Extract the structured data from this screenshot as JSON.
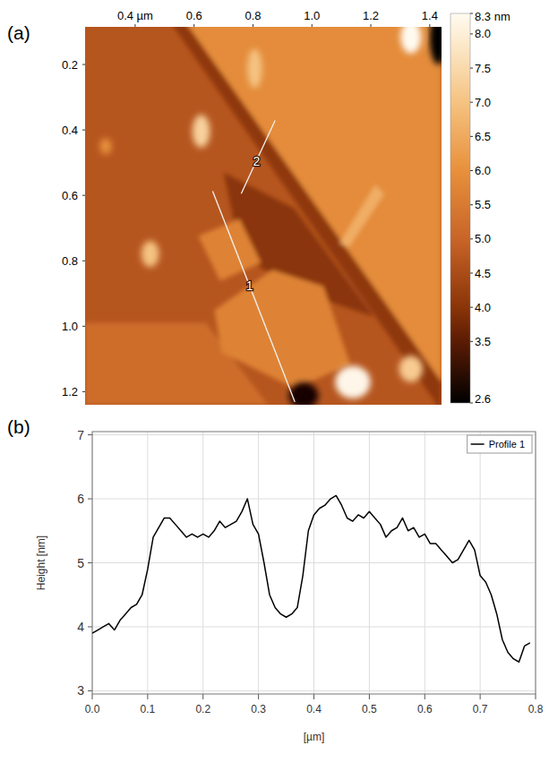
{
  "chart_data": [
    {
      "type": "heatmap",
      "panel": "(a)",
      "xlim": [
        0.23,
        1.44
      ],
      "ylim": [
        0.085,
        1.24
      ],
      "xticks": [
        {
          "value": 0.4,
          "label": "0.4 µm"
        },
        0.6,
        0.8,
        {
          "value": 1,
          "label": "1.0"
        },
        1.2,
        1.4
      ],
      "yticks": [
        0.2,
        0.4,
        0.6,
        0.8,
        {
          "value": 1,
          "label": "1.0"
        },
        1.2
      ],
      "colorbar": {
        "range": [
          2.6,
          8.3
        ],
        "ticks": [
          {
            "value": 8.3,
            "label": "8.3 nm"
          },
          {
            "value": 8,
            "label": "8.0"
          },
          7.5,
          {
            "value": 7,
            "label": "7.0"
          },
          6.5,
          {
            "value": 6,
            "label": "6.0"
          },
          5.5,
          {
            "value": 5,
            "label": "5.0"
          },
          4.5,
          {
            "value": 4,
            "label": "4.0"
          },
          3.5,
          2.6
        ]
      },
      "base_height": 4.7,
      "regions": [
        {
          "height": 5.2,
          "points": [
            [
              0.23,
              0.99
            ],
            [
              0.64,
              0.99
            ],
            [
              0.85,
              1.24
            ],
            [
              0.23,
              1.24
            ]
          ]
        },
        {
          "height": 5.9,
          "points": [
            [
              0.53,
              0.02
            ],
            [
              1.44,
              0.02
            ],
            [
              1.44,
              1.17
            ]
          ]
        },
        {
          "height": 4.1,
          "points": [
            [
              0.48,
              0.02
            ],
            [
              0.53,
              0.02
            ],
            [
              1.44,
              1.17
            ],
            [
              1.44,
              1.26
            ]
          ]
        },
        {
          "height": 4.0,
          "points": [
            [
              0.7,
              0.53
            ],
            [
              0.94,
              0.64
            ],
            [
              1.21,
              0.97
            ],
            [
              0.94,
              0.89
            ],
            [
              0.76,
              0.78
            ]
          ]
        },
        {
          "height": 5.7,
          "points": [
            [
              0.615,
              0.724
            ],
            [
              0.754,
              0.672
            ],
            [
              0.827,
              0.806
            ],
            [
              0.688,
              0.861
            ]
          ]
        },
        {
          "height": 5.7,
          "points": [
            [
              0.669,
              0.951
            ],
            [
              0.866,
              0.828
            ],
            [
              1.039,
              0.878
            ],
            [
              1.13,
              1.116
            ],
            [
              0.942,
              1.19
            ],
            [
              0.694,
              1.08
            ]
          ]
        },
        {
          "height": 6.6,
          "points": [
            [
              1.094,
              0.746
            ],
            [
              1.124,
              0.76
            ],
            [
              1.245,
              0.596
            ],
            [
              1.215,
              0.568
            ]
          ]
        }
      ],
      "blobs": [
        {
          "height": 7.0,
          "cx": 0.806,
          "cy": 0.212,
          "rx": 0.025,
          "ry": 0.06
        },
        {
          "height": 7.3,
          "cx": 0.624,
          "cy": 0.404,
          "rx": 0.03,
          "ry": 0.05
        },
        {
          "height": 7.0,
          "cx": 0.451,
          "cy": 0.779,
          "rx": 0.03,
          "ry": 0.04
        },
        {
          "height": 6.0,
          "cx": 0.3,
          "cy": 0.45,
          "rx": 0.02,
          "ry": 0.025
        },
        {
          "height": 8.3,
          "cx": 1.336,
          "cy": 0.116,
          "rx": 0.035,
          "ry": 0.05
        },
        {
          "height": 8.2,
          "cx": 1.139,
          "cy": 1.171,
          "rx": 0.06,
          "ry": 0.05
        },
        {
          "height": 7.2,
          "cx": 1.336,
          "cy": 1.13,
          "rx": 0.04,
          "ry": 0.04
        },
        {
          "height": 2.8,
          "cx": 0.972,
          "cy": 1.212,
          "rx": 0.05,
          "ry": 0.04
        },
        {
          "height": 2.6,
          "cx": 1.43,
          "cy": 0.12,
          "rx": 0.03,
          "ry": 0.08
        }
      ],
      "profiles": [
        {
          "label": "1",
          "start": [
            0.663,
            0.587
          ],
          "end": [
            0.942,
            1.231
          ]
        },
        {
          "label": "2",
          "start": [
            0.76,
            0.595
          ],
          "end": [
            0.875,
            0.371
          ]
        }
      ]
    },
    {
      "type": "line",
      "panel": "(b)",
      "x_label": "[µm]",
      "y_label": "Height [nm]",
      "xlim": [
        0,
        0.8
      ],
      "ylim": [
        2.95,
        7.05
      ],
      "xticks": [
        {
          "value": 0,
          "label": "0.0"
        },
        0.1,
        0.2,
        0.3,
        0.4,
        0.5,
        0.6,
        0.7,
        0.8
      ],
      "yticks": [
        3,
        4,
        5,
        6,
        7
      ],
      "grid": true,
      "legend": "top-right",
      "x": [
        0,
        0.01,
        0.02,
        0.03,
        0.04,
        0.05,
        0.06,
        0.07,
        0.08,
        0.09,
        0.1,
        0.11,
        0.12,
        0.13,
        0.14,
        0.15,
        0.16,
        0.17,
        0.18,
        0.19,
        0.2,
        0.21,
        0.22,
        0.23,
        0.24,
        0.25,
        0.26,
        0.27,
        0.28,
        0.29,
        0.3,
        0.31,
        0.32,
        0.33,
        0.34,
        0.35,
        0.36,
        0.37,
        0.38,
        0.39,
        0.4,
        0.41,
        0.42,
        0.43,
        0.44,
        0.45,
        0.46,
        0.47,
        0.48,
        0.49,
        0.5,
        0.51,
        0.52,
        0.53,
        0.54,
        0.55,
        0.56,
        0.57,
        0.58,
        0.59,
        0.6,
        0.61,
        0.62,
        0.63,
        0.64,
        0.65,
        0.66,
        0.67,
        0.68,
        0.69,
        0.7,
        0.71,
        0.72,
        0.73,
        0.74,
        0.75,
        0.76,
        0.77,
        0.78,
        0.79
      ],
      "series": [
        {
          "name": "Profile 1",
          "color": "#000000",
          "values": [
            3.9,
            3.95,
            4.0,
            4.05,
            3.95,
            4.1,
            4.2,
            4.3,
            4.35,
            4.5,
            4.9,
            5.4,
            5.55,
            5.7,
            5.7,
            5.6,
            5.5,
            5.4,
            5.45,
            5.4,
            5.45,
            5.4,
            5.5,
            5.65,
            5.55,
            5.6,
            5.65,
            5.8,
            6.0,
            5.6,
            5.45,
            5.0,
            4.5,
            4.3,
            4.2,
            4.15,
            4.2,
            4.3,
            4.8,
            5.5,
            5.75,
            5.85,
            5.9,
            6.0,
            6.05,
            5.9,
            5.7,
            5.65,
            5.75,
            5.7,
            5.8,
            5.7,
            5.6,
            5.4,
            5.5,
            5.55,
            5.7,
            5.5,
            5.55,
            5.4,
            5.45,
            5.3,
            5.3,
            5.2,
            5.1,
            5.0,
            5.05,
            5.2,
            5.35,
            5.2,
            4.8,
            4.7,
            4.5,
            4.2,
            3.8,
            3.6,
            3.5,
            3.45,
            3.7,
            3.75
          ]
        }
      ]
    }
  ]
}
